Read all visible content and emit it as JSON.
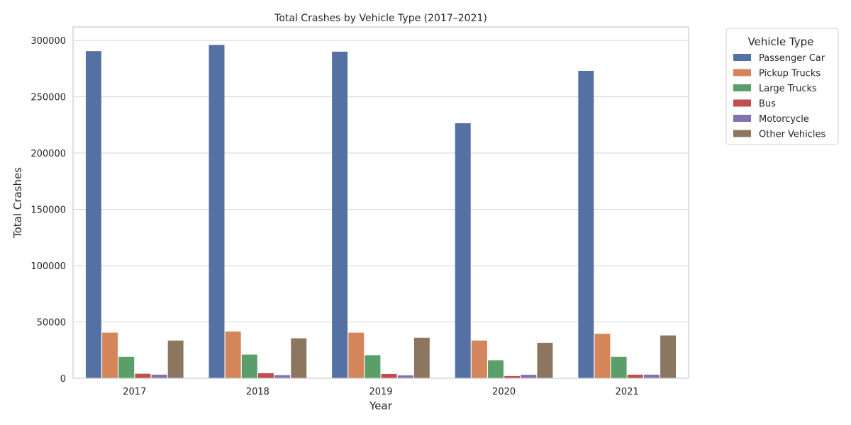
{
  "chart_data": {
    "type": "bar",
    "title": "Total Crashes by Vehicle Type (2017–2021)",
    "xlabel": "Year",
    "ylabel": "Total Crashes",
    "categories": [
      "2017",
      "2018",
      "2019",
      "2020",
      "2021"
    ],
    "ylim": [
      0,
      312000
    ],
    "yticks": [
      0,
      50000,
      100000,
      150000,
      200000,
      250000,
      300000
    ],
    "grid": "horizontal",
    "legend": {
      "title": "Vehicle Type",
      "placement": "outside-top-right"
    },
    "series": [
      {
        "name": "Passenger Car",
        "color": "#5571a4",
        "values": [
          290500,
          296000,
          290000,
          226500,
          273000
        ]
      },
      {
        "name": "Pickup Trucks",
        "color": "#d4855a",
        "values": [
          40500,
          41500,
          40500,
          33500,
          39500
        ]
      },
      {
        "name": "Large Trucks",
        "color": "#5a9e6a",
        "values": [
          19000,
          21000,
          20500,
          16000,
          19000
        ]
      },
      {
        "name": "Bus",
        "color": "#c04e4f",
        "values": [
          4000,
          4500,
          3800,
          2000,
          3200
        ]
      },
      {
        "name": "Motorcycle",
        "color": "#8173ae",
        "values": [
          3200,
          2800,
          2600,
          3100,
          3200
        ]
      },
      {
        "name": "Other Vehicles",
        "color": "#8c7660",
        "values": [
          33500,
          35500,
          36000,
          31500,
          38000
        ]
      }
    ]
  }
}
